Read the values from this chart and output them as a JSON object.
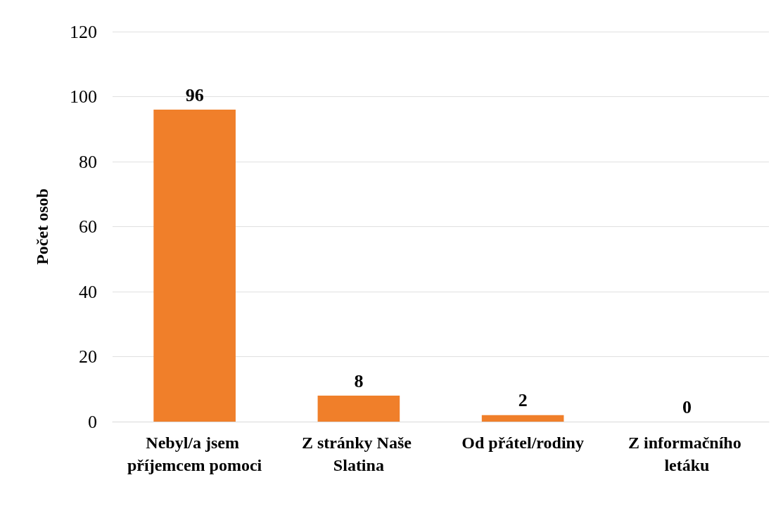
{
  "chart_data": {
    "type": "bar",
    "ylabel": "Počet osob",
    "categories": [
      "Nebyl/a jsem příjemcem pomoci",
      "Z stránky Naše Slatina",
      "Od přátel/rodiny",
      "Z informačního letáku"
    ],
    "values": [
      96,
      8,
      2,
      0
    ],
    "color": "#f07f2a",
    "ylim": [
      0,
      120
    ],
    "yticks": [
      0,
      20,
      40,
      60,
      80,
      100,
      120
    ],
    "grid": "y",
    "data_labels": true
  }
}
